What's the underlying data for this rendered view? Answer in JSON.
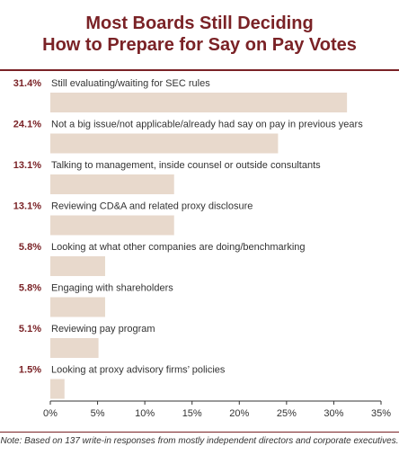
{
  "header": {
    "title_line1": "Most Boards Still Deciding",
    "title_line2": "How to Prepare for Say on Pay Votes"
  },
  "colors": {
    "accent": "#7a2226",
    "bar": "#e8d9cc",
    "text": "#333333"
  },
  "chart_data": {
    "type": "bar",
    "orientation": "horizontal",
    "categories": [
      "Still evaluating/waiting for SEC rules",
      "Not a big issue/not applicable/already had say on pay in previous years",
      "Talking to management, inside counsel or outside consultants",
      "Reviewing CD&A and related proxy disclosure",
      "Looking at what other companies are doing/benchmarking",
      "Engaging with shareholders",
      "Reviewing pay program",
      "Looking at proxy advisory firms’ policies"
    ],
    "values": [
      31.4,
      24.1,
      13.1,
      13.1,
      5.8,
      5.8,
      5.1,
      1.5
    ],
    "value_labels": [
      "31.4%",
      "24.1%",
      "13.1%",
      "13.1%",
      "5.8%",
      "5.8%",
      "5.1%",
      "1.5%"
    ],
    "xlim": [
      0,
      35
    ],
    "xticks": [
      0,
      5,
      10,
      15,
      20,
      25,
      30,
      35
    ],
    "xtick_labels": [
      "0%",
      "5%",
      "10%",
      "15%",
      "20%",
      "25%",
      "30%",
      "35%"
    ],
    "grid": false,
    "legend": "none"
  },
  "footer": {
    "note": "Note: Based on 137 write-in responses from mostly independent directors and corporate executives."
  }
}
